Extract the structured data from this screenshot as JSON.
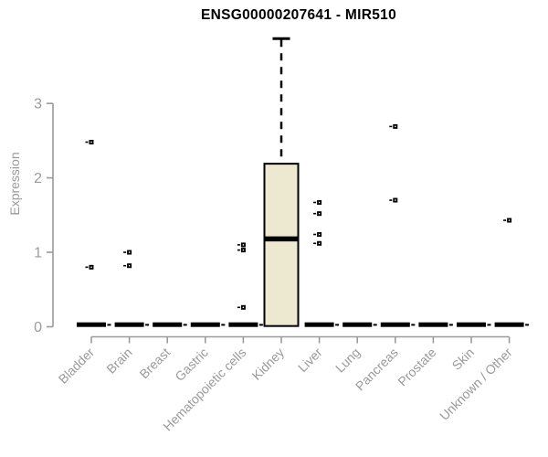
{
  "chart_data": {
    "type": "box",
    "title": "ENSG00000207641 - MIR510",
    "ylabel": "Expression",
    "xlabel": "",
    "yticks": [
      0,
      1,
      2,
      3
    ],
    "ylim": [
      0,
      3.95
    ],
    "grid": false,
    "legend": "none",
    "categories": [
      "Bladder",
      "Brain",
      "Breast",
      "Gastric",
      "Hematopoietic cells",
      "Kidney",
      "Liver",
      "Lung",
      "Pancreas",
      "Prostate",
      "Skin",
      "Unknown / Other"
    ],
    "boxes": [
      {
        "category": "Bladder",
        "whisker_low": 0,
        "q1": 0,
        "median": 0,
        "q3": 0,
        "whisker_high": 0,
        "outliers": [
          2.48,
          0.8
        ]
      },
      {
        "category": "Brain",
        "whisker_low": 0,
        "q1": 0,
        "median": 0,
        "q3": 0,
        "whisker_high": 0,
        "outliers": [
          1.0,
          0.82
        ]
      },
      {
        "category": "Breast",
        "whisker_low": 0,
        "q1": 0,
        "median": 0,
        "q3": 0,
        "whisker_high": 0,
        "outliers": []
      },
      {
        "category": "Gastric",
        "whisker_low": 0,
        "q1": 0,
        "median": 0,
        "q3": 0,
        "whisker_high": 0,
        "outliers": []
      },
      {
        "category": "Hematopoietic cells",
        "whisker_low": 0,
        "q1": 0,
        "median": 0,
        "q3": 0,
        "whisker_high": 0,
        "outliers": [
          1.1,
          1.03,
          0.26
        ]
      },
      {
        "category": "Kidney",
        "whisker_low": 0,
        "q1": 0.01,
        "median": 1.18,
        "q3": 2.19,
        "whisker_high": 3.87,
        "outliers": []
      },
      {
        "category": "Liver",
        "whisker_low": 0,
        "q1": 0,
        "median": 0,
        "q3": 0,
        "whisker_high": 0,
        "outliers": [
          1.67,
          1.52,
          1.24,
          1.12
        ]
      },
      {
        "category": "Lung",
        "whisker_low": 0,
        "q1": 0,
        "median": 0,
        "q3": 0,
        "whisker_high": 0,
        "outliers": []
      },
      {
        "category": "Pancreas",
        "whisker_low": 0,
        "q1": 0,
        "median": 0,
        "q3": 0,
        "whisker_high": 0,
        "outliers": [
          2.69,
          1.7
        ]
      },
      {
        "category": "Prostate",
        "whisker_low": 0,
        "q1": 0,
        "median": 0,
        "q3": 0,
        "whisker_high": 0,
        "outliers": []
      },
      {
        "category": "Skin",
        "whisker_low": 0,
        "q1": 0,
        "median": 0,
        "q3": 0,
        "whisker_high": 0,
        "outliers": []
      },
      {
        "category": "Unknown / Other",
        "whisker_low": 0,
        "q1": 0,
        "median": 0,
        "q3": 0,
        "whisker_high": 0,
        "outliers": [
          1.43
        ]
      }
    ],
    "colors": {
      "background": "#ffffff",
      "box_fill": "#ede8d0",
      "box_stroke": "#000000",
      "median": "#000000",
      "whisker": "#000000",
      "outlier": "#000000",
      "axis": "#9a9a9a",
      "tick_text": "#9a9a9a",
      "title_text": "#000000"
    }
  }
}
